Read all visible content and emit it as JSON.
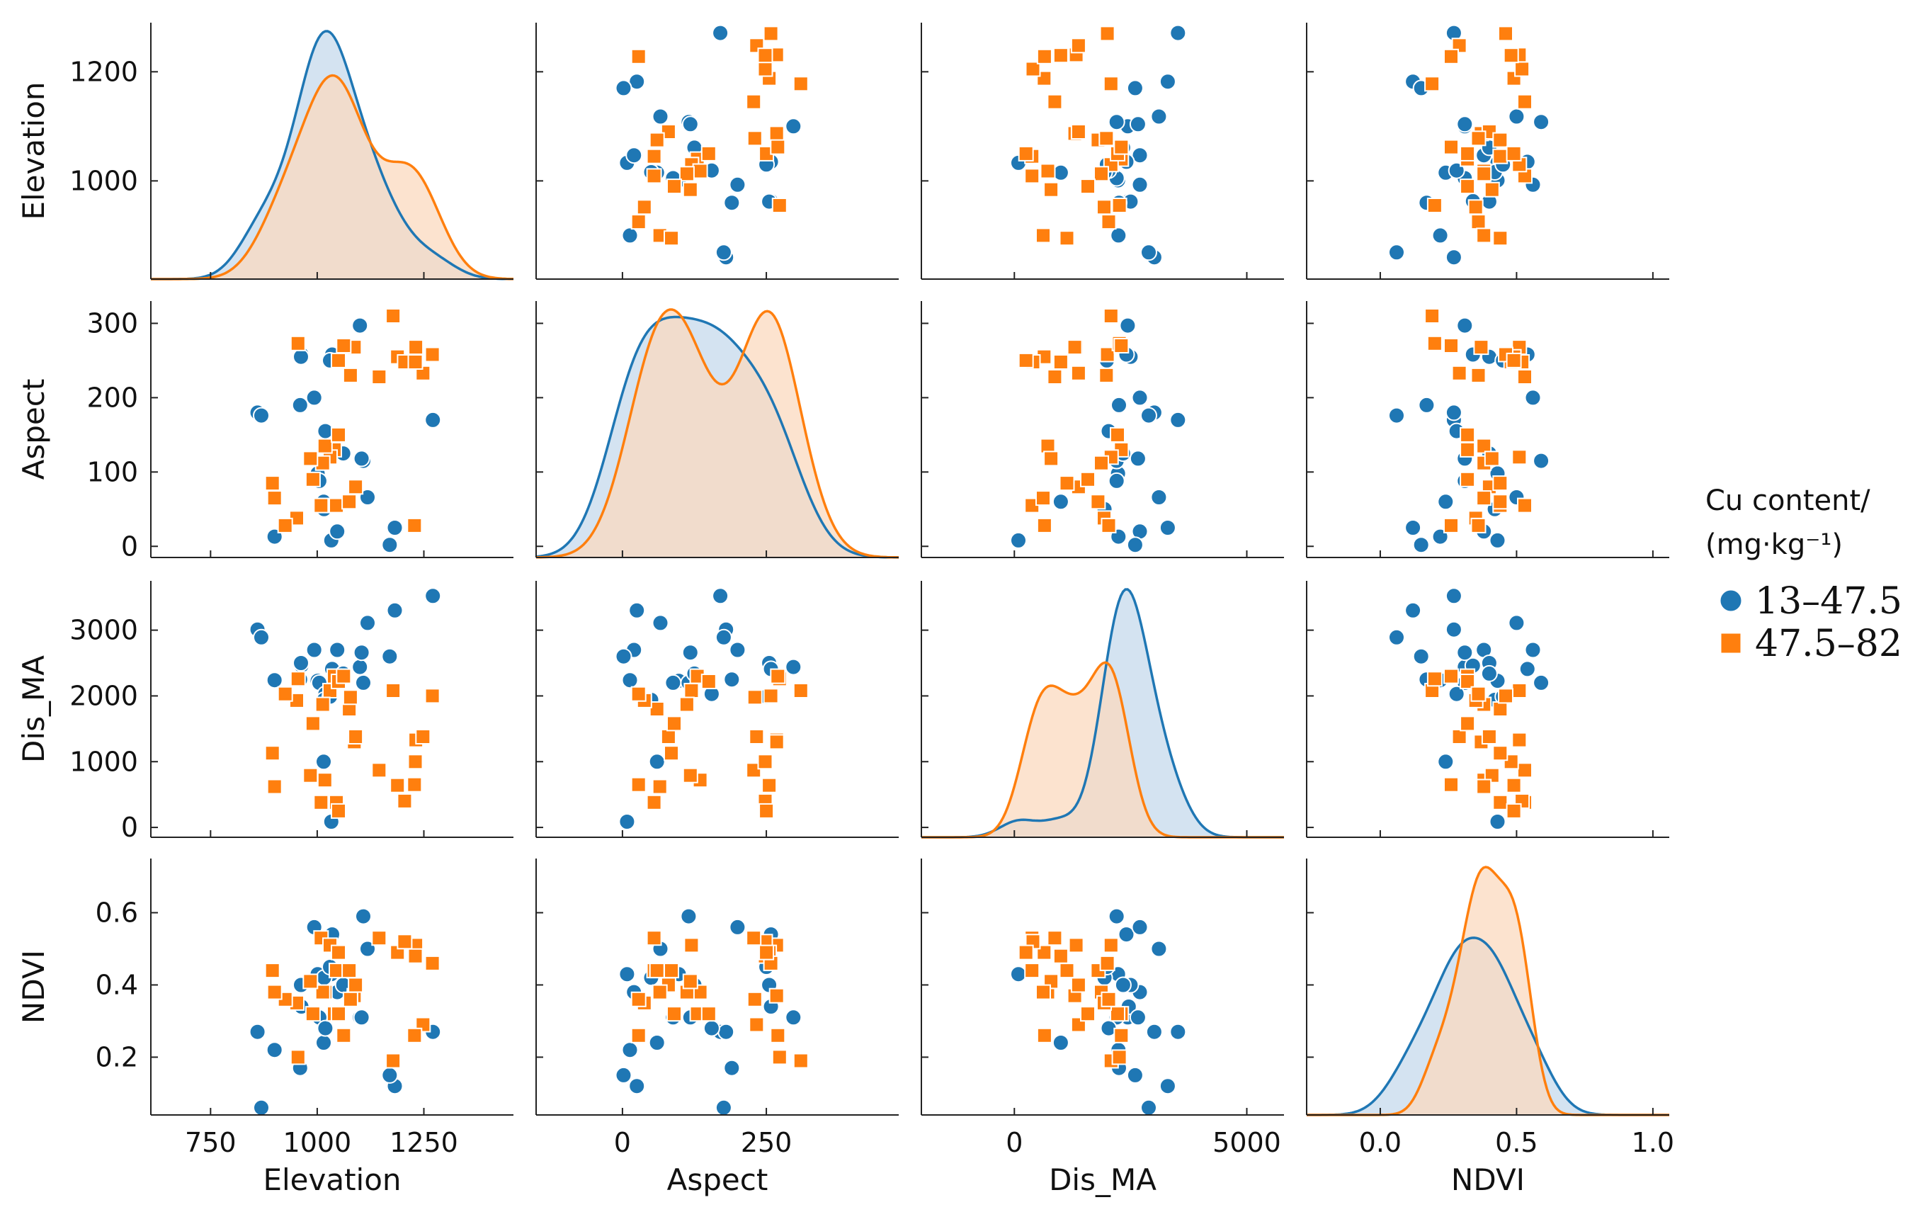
{
  "colors": {
    "group1": "#1f77b4",
    "group2": "#ff7f0e",
    "group1_fill": "#c6d9ec",
    "group2_fill": "#fbd9bf"
  },
  "legend": {
    "title_line1": "Cu content/",
    "title_line2": "(mg·kg⁻¹)",
    "entries": [
      "13–47.5",
      "47.5–82"
    ]
  },
  "chart_data": {
    "type": "pairplot",
    "variables": [
      "Elevation",
      "Aspect",
      "Dis_MA",
      "NDVI"
    ],
    "groups": [
      "13–47.5",
      "47.5–82"
    ],
    "axes": {
      "Elevation": {
        "range": [
          610,
          1460
        ],
        "ticks": [
          750,
          1000,
          1250
        ],
        "tick_labels": [
          "750",
          "1000",
          "1250"
        ],
        "y_ticks": [
          1000,
          1200
        ],
        "y_tick_labels": [
          "1000",
          "1200"
        ],
        "y_range": [
          820,
          1290
        ]
      },
      "Aspect": {
        "range": [
          -150,
          480
        ],
        "ticks": [
          0,
          250
        ],
        "tick_labels": [
          "0",
          "250"
        ],
        "y_ticks": [
          0,
          100,
          200,
          300
        ],
        "y_tick_labels": [
          "0",
          "100",
          "200",
          "300"
        ],
        "y_range": [
          -15,
          330
        ]
      },
      "Dis_MA": {
        "range": [
          -2000,
          5800
        ],
        "ticks": [
          0,
          5000
        ],
        "tick_labels": [
          "0",
          "5000"
        ],
        "y_ticks": [
          0,
          1000,
          2000,
          3000
        ],
        "y_tick_labels": [
          "0",
          "1000",
          "2000",
          "3000"
        ],
        "y_range": [
          -150,
          3750
        ]
      },
      "NDVI": {
        "range": [
          -0.27,
          1.06
        ],
        "ticks": [
          0.0,
          0.5,
          1.0
        ],
        "tick_labels": [
          "0.0",
          "0.5",
          "1.0"
        ],
        "y_ticks": [
          0.2,
          0.4,
          0.6
        ],
        "y_tick_labels": [
          "0.2",
          "0.4",
          "0.6"
        ],
        "y_range": [
          0.04,
          0.75
        ]
      }
    },
    "observations": {
      "13–47.5": [
        {
          "Elevation": 1033,
          "Aspect": 8,
          "Dis_MA": 87,
          "NDVI": 0.43
        },
        {
          "Elevation": 1047,
          "Aspect": 20,
          "Dis_MA": 2700,
          "NDVI": 0.38
        },
        {
          "Elevation": 1100,
          "Aspect": 297,
          "Dis_MA": 2440,
          "NDVI": 0.31
        },
        {
          "Elevation": 1118,
          "Aspect": 66,
          "Dis_MA": 3110,
          "NDVI": 0.5
        },
        {
          "Elevation": 1271,
          "Aspect": 170,
          "Dis_MA": 3520,
          "NDVI": 0.27
        },
        {
          "Elevation": 963,
          "Aspect": 258,
          "Dis_MA": 2460,
          "NDVI": 0.34
        },
        {
          "Elevation": 900,
          "Aspect": 13,
          "Dis_MA": 2240,
          "NDVI": 0.22
        },
        {
          "Elevation": 1015,
          "Aspect": 60,
          "Dis_MA": 1000,
          "NDVI": 0.24
        },
        {
          "Elevation": 860,
          "Aspect": 180,
          "Dis_MA": 3010,
          "NDVI": 0.27
        },
        {
          "Elevation": 1001,
          "Aspect": 98,
          "Dis_MA": 2230,
          "NDVI": 0.43
        },
        {
          "Elevation": 1005,
          "Aspect": 88,
          "Dis_MA": 2200,
          "NDVI": 0.31
        },
        {
          "Elevation": 962,
          "Aspect": 255,
          "Dis_MA": 2500,
          "NDVI": 0.4
        },
        {
          "Elevation": 1108,
          "Aspect": 115,
          "Dis_MA": 2200,
          "NDVI": 0.59
        },
        {
          "Elevation": 960,
          "Aspect": 190,
          "Dis_MA": 2250,
          "NDVI": 0.17
        },
        {
          "Elevation": 1035,
          "Aspect": 258,
          "Dis_MA": 2410,
          "NDVI": 0.54
        },
        {
          "Elevation": 1061,
          "Aspect": 125,
          "Dis_MA": 2340,
          "NDVI": 0.4
        },
        {
          "Elevation": 869,
          "Aspect": 176,
          "Dis_MA": 2890,
          "NDVI": 0.06
        },
        {
          "Elevation": 1182,
          "Aspect": 25,
          "Dis_MA": 3300,
          "NDVI": 0.12
        },
        {
          "Elevation": 1170,
          "Aspect": 2,
          "Dis_MA": 2600,
          "NDVI": 0.15
        },
        {
          "Elevation": 1019,
          "Aspect": 155,
          "Dis_MA": 2030,
          "NDVI": 0.28
        },
        {
          "Elevation": 993,
          "Aspect": 200,
          "Dis_MA": 2700,
          "NDVI": 0.56
        },
        {
          "Elevation": 1016,
          "Aspect": 50,
          "Dis_MA": 1940,
          "NDVI": 0.42
        },
        {
          "Elevation": 1030,
          "Aspect": 250,
          "Dis_MA": 1990,
          "NDVI": 0.45
        },
        {
          "Elevation": 1104,
          "Aspect": 118,
          "Dis_MA": 2660,
          "NDVI": 0.31
        }
      ],
      "47.5–82": [
        {
          "Elevation": 1231,
          "Aspect": 268,
          "Dis_MA": 1330,
          "NDVI": 0.51
        },
        {
          "Elevation": 1009,
          "Aspect": 55,
          "Dis_MA": 380,
          "NDVI": 0.53
        },
        {
          "Elevation": 1188,
          "Aspect": 255,
          "Dis_MA": 640,
          "NDVI": 0.49
        },
        {
          "Elevation": 1205,
          "Aspect": 248,
          "Dis_MA": 400,
          "NDVI": 0.52
        },
        {
          "Elevation": 1145,
          "Aspect": 228,
          "Dis_MA": 870,
          "NDVI": 0.53
        },
        {
          "Elevation": 1087,
          "Aspect": 268,
          "Dis_MA": 1300,
          "NDVI": 0.37
        },
        {
          "Elevation": 1248,
          "Aspect": 233,
          "Dis_MA": 1380,
          "NDVI": 0.29
        },
        {
          "Elevation": 1090,
          "Aspect": 80,
          "Dis_MA": 1380,
          "NDVI": 0.4
        },
        {
          "Elevation": 1045,
          "Aspect": 55,
          "Dis_MA": 380,
          "NDVI": 0.44
        },
        {
          "Elevation": 1040,
          "Aspect": 130,
          "Dis_MA": 2300,
          "NDVI": 0.32
        },
        {
          "Elevation": 1030,
          "Aspect": 120,
          "Dis_MA": 2080,
          "NDVI": 0.51
        },
        {
          "Elevation": 1018,
          "Aspect": 135,
          "Dis_MA": 720,
          "NDVI": 0.38
        },
        {
          "Elevation": 1230,
          "Aspect": 248,
          "Dis_MA": 1000,
          "NDVI": 0.48
        },
        {
          "Elevation": 1075,
          "Aspect": 60,
          "Dis_MA": 1800,
          "NDVI": 0.44
        },
        {
          "Elevation": 1050,
          "Aspect": 150,
          "Dis_MA": 2220,
          "NDVI": 0.32
        },
        {
          "Elevation": 1078,
          "Aspect": 230,
          "Dis_MA": 1980,
          "NDVI": 0.36
        },
        {
          "Elevation": 1013,
          "Aspect": 112,
          "Dis_MA": 1870,
          "NDVI": 0.38
        },
        {
          "Elevation": 990,
          "Aspect": 90,
          "Dis_MA": 1580,
          "NDVI": 0.32
        },
        {
          "Elevation": 984,
          "Aspect": 118,
          "Dis_MA": 790,
          "NDVI": 0.41
        },
        {
          "Elevation": 952,
          "Aspect": 38,
          "Dis_MA": 1930,
          "NDVI": 0.35
        },
        {
          "Elevation": 925,
          "Aspect": 28,
          "Dis_MA": 2030,
          "NDVI": 0.36
        },
        {
          "Elevation": 900,
          "Aspect": 65,
          "Dis_MA": 620,
          "NDVI": 0.38
        },
        {
          "Elevation": 895,
          "Aspect": 85,
          "Dis_MA": 1130,
          "NDVI": 0.44
        },
        {
          "Elevation": 1270,
          "Aspect": 258,
          "Dis_MA": 2000,
          "NDVI": 0.46
        },
        {
          "Elevation": 1228,
          "Aspect": 28,
          "Dis_MA": 650,
          "NDVI": 0.26
        },
        {
          "Elevation": 1178,
          "Aspect": 310,
          "Dis_MA": 2080,
          "NDVI": 0.19
        },
        {
          "Elevation": 1050,
          "Aspect": 250,
          "Dis_MA": 250,
          "NDVI": 0.49
        },
        {
          "Elevation": 955,
          "Aspect": 273,
          "Dis_MA": 2260,
          "NDVI": 0.2
        },
        {
          "Elevation": 1062,
          "Aspect": 270,
          "Dis_MA": 2300,
          "NDVI": 0.26
        }
      ]
    }
  }
}
